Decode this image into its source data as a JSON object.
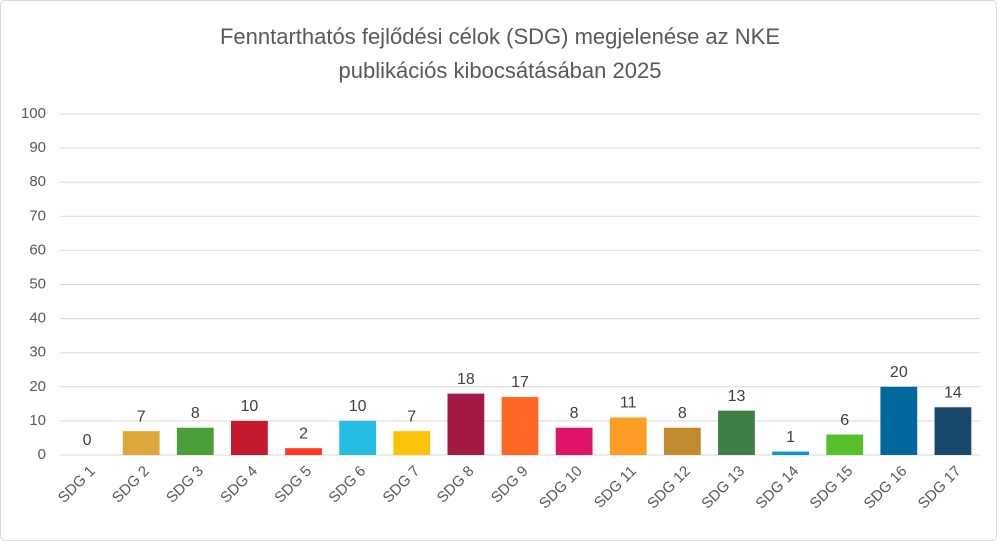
{
  "chart_data": {
    "type": "bar",
    "title": [
      "Fenntarthatós fejlődési célok (SDG) megjelenése az NKE",
      "publikációs kibocsátásában 2025"
    ],
    "categories": [
      "SDG 1",
      "SDG 2",
      "SDG 3",
      "SDG 4",
      "SDG 5",
      "SDG 6",
      "SDG 7",
      "SDG 8",
      "SDG 9",
      "SDG 10",
      "SDG 11",
      "SDG 12",
      "SDG 13",
      "SDG 14",
      "SDG 15",
      "SDG 16",
      "SDG 17"
    ],
    "values": [
      0,
      7,
      8,
      10,
      2,
      10,
      7,
      18,
      17,
      8,
      11,
      8,
      13,
      1,
      6,
      20,
      14
    ],
    "colors": [
      "#E5243B",
      "#DDA63A",
      "#4C9F38",
      "#C5192D",
      "#FF3A21",
      "#26BDE2",
      "#FCC30B",
      "#A21942",
      "#FD6925",
      "#DD1367",
      "#FD9D24",
      "#BF8B2E",
      "#3F7E44",
      "#0A97D9",
      "#56C02B",
      "#00689D",
      "#19486A"
    ],
    "ylim": [
      0,
      100
    ],
    "yticks": [
      0,
      10,
      20,
      30,
      40,
      50,
      60,
      70,
      80,
      90,
      100
    ],
    "grid": true
  }
}
